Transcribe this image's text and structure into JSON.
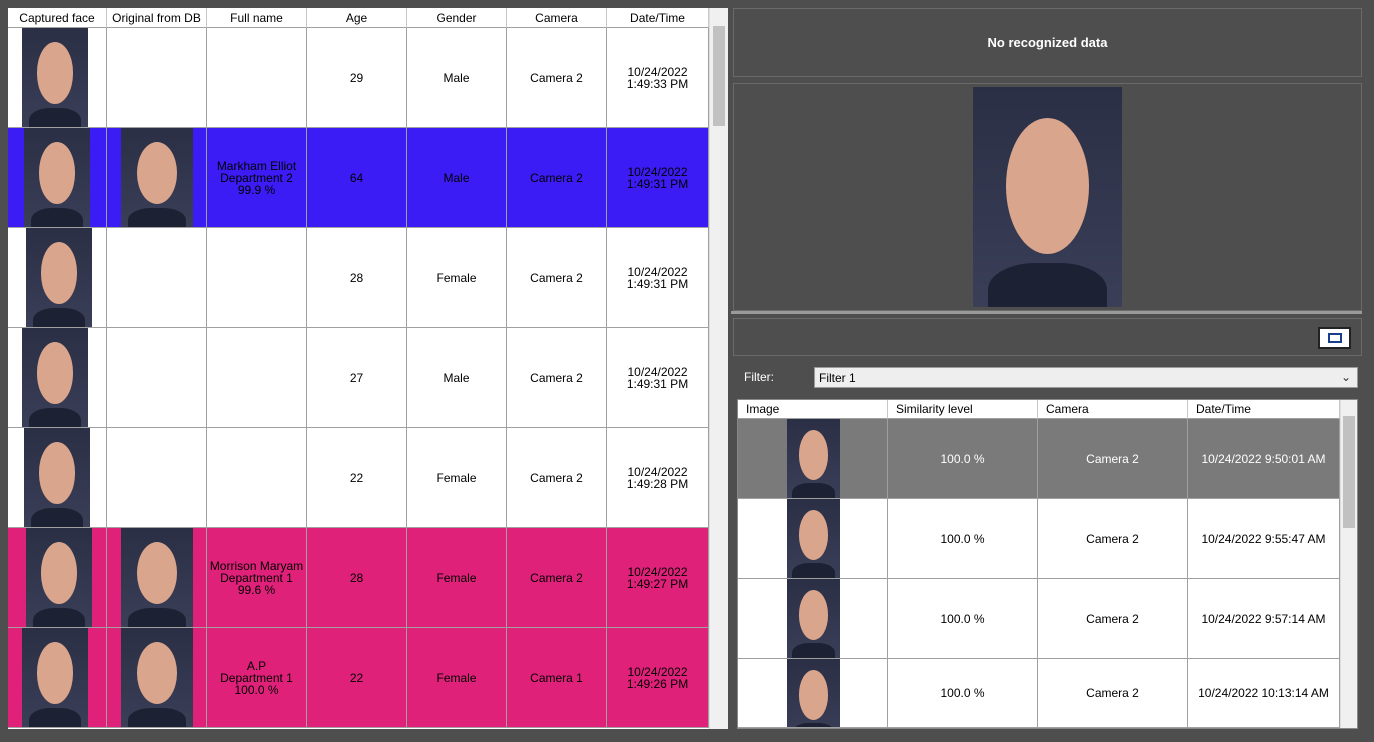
{
  "left_table": {
    "columns": [
      "Captured face",
      "Original from DB",
      "Full name",
      "Age",
      "Gender",
      "Camera",
      "Date/Time"
    ],
    "rows": [
      {
        "name": [],
        "age": "29",
        "gender": "Male",
        "camera": "Camera 2",
        "datetime": [
          "10/24/2022",
          "1:49:33 PM"
        ],
        "db_photo": false,
        "highlight": null
      },
      {
        "name": [
          "Markham Elliot",
          "Department 2",
          "99.9 %"
        ],
        "age": "64",
        "gender": "Male",
        "camera": "Camera 2",
        "datetime": [
          "10/24/2022",
          "1:49:31 PM"
        ],
        "db_photo": true,
        "highlight": "#3b1cf4"
      },
      {
        "name": [],
        "age": "28",
        "gender": "Female",
        "camera": "Camera 2",
        "datetime": [
          "10/24/2022",
          "1:49:31 PM"
        ],
        "db_photo": false,
        "highlight": null
      },
      {
        "name": [],
        "age": "27",
        "gender": "Male",
        "camera": "Camera 2",
        "datetime": [
          "10/24/2022",
          "1:49:31 PM"
        ],
        "db_photo": false,
        "highlight": null
      },
      {
        "name": [],
        "age": "22",
        "gender": "Female",
        "camera": "Camera 2",
        "datetime": [
          "10/24/2022",
          "1:49:28 PM"
        ],
        "db_photo": false,
        "highlight": null
      },
      {
        "name": [
          "Morrison Maryam",
          "Department 1",
          "99.6 %"
        ],
        "age": "28",
        "gender": "Female",
        "camera": "Camera 2",
        "datetime": [
          "10/24/2022",
          "1:49:27 PM"
        ],
        "db_photo": true,
        "highlight": "#e0217a"
      },
      {
        "name": [
          "A.P",
          "Department 1",
          "100.0 %"
        ],
        "age": "22",
        "gender": "Female",
        "camera": "Camera 1",
        "datetime": [
          "10/24/2022",
          "1:49:26 PM"
        ],
        "db_photo": true,
        "highlight": "#e0217a"
      }
    ]
  },
  "status": "No recognized data",
  "filter": {
    "label": "Filter:",
    "selected": "Filter 1"
  },
  "right_table": {
    "columns": [
      "Image",
      "Similarity level",
      "Camera",
      "Date/Time"
    ],
    "rows": [
      {
        "similarity": "100.0 %",
        "camera": "Camera 2",
        "datetime": "10/24/2022 9:50:01 AM",
        "selected": true
      },
      {
        "similarity": "100.0 %",
        "camera": "Camera 2",
        "datetime": "10/24/2022 9:55:47 AM",
        "selected": false
      },
      {
        "similarity": "100.0 %",
        "camera": "Camera 2",
        "datetime": "10/24/2022 9:57:14 AM",
        "selected": false
      },
      {
        "similarity": "100.0 %",
        "camera": "Camera 2",
        "datetime": "10/24/2022 10:13:14 AM",
        "selected": false
      }
    ]
  }
}
